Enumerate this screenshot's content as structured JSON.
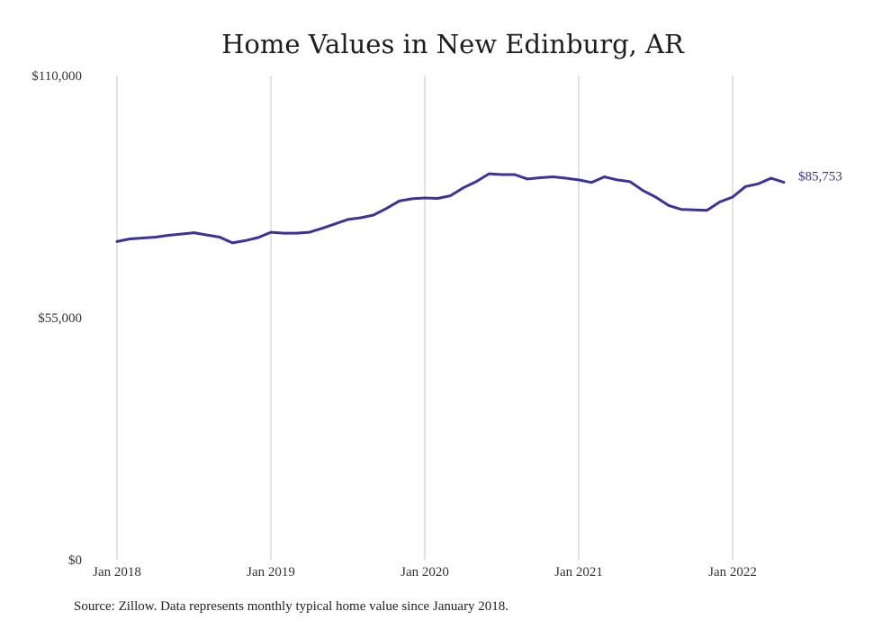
{
  "chart_data": {
    "type": "line",
    "title": "Home Values in New Edinburg, AR",
    "ylim": [
      0,
      110000
    ],
    "yticks": [
      {
        "value": 0,
        "label": "$0"
      },
      {
        "value": 55000,
        "label": "$55,000"
      },
      {
        "value": 110000,
        "label": "$110,000"
      }
    ],
    "xticks": [
      {
        "date": "2018-01",
        "label": "Jan 2018"
      },
      {
        "date": "2019-01",
        "label": "Jan 2019"
      },
      {
        "date": "2020-01",
        "label": "Jan 2020"
      },
      {
        "date": "2021-01",
        "label": "Jan 2021"
      },
      {
        "date": "2022-01",
        "label": "Jan 2022"
      }
    ],
    "grid": "vertical",
    "line_color": "#3c3399",
    "series": [
      {
        "x": [
          "2018-01",
          "2018-02",
          "2018-03",
          "2018-04",
          "2018-05",
          "2018-06",
          "2018-07",
          "2018-08",
          "2018-09",
          "2018-10",
          "2018-11",
          "2018-12",
          "2019-01",
          "2019-02",
          "2019-03",
          "2019-04",
          "2019-05",
          "2019-06",
          "2019-07",
          "2019-08",
          "2019-09",
          "2019-10",
          "2019-11",
          "2019-12",
          "2020-01",
          "2020-02",
          "2020-03",
          "2020-04",
          "2020-05",
          "2020-06",
          "2020-07",
          "2020-08",
          "2020-09",
          "2020-10",
          "2020-11",
          "2020-12",
          "2021-01",
          "2021-02",
          "2021-03",
          "2021-04",
          "2021-05",
          "2021-06",
          "2021-07",
          "2021-08",
          "2021-09",
          "2021-10",
          "2021-11",
          "2021-12",
          "2022-01",
          "2022-02",
          "2022-03",
          "2022-04",
          "2022-05"
        ],
        "values": [
          72300,
          72900,
          73100,
          73300,
          73700,
          74000,
          74300,
          73800,
          73300,
          72000,
          72500,
          73200,
          74400,
          74200,
          74200,
          74400,
          75300,
          76300,
          77300,
          77700,
          78300,
          79800,
          81500,
          82000,
          82200,
          82100,
          82700,
          84500,
          85900,
          87700,
          87500,
          87500,
          86500,
          86800,
          87000,
          86700,
          86300,
          85700,
          87000,
          86300,
          85900,
          83900,
          82400,
          80500,
          79600,
          79500,
          79400,
          81300,
          82400,
          84800,
          85400,
          86700,
          85753
        ]
      }
    ],
    "end_label": "$85,753",
    "source": "Source: Zillow. Data represents monthly typical home value since January 2018."
  }
}
